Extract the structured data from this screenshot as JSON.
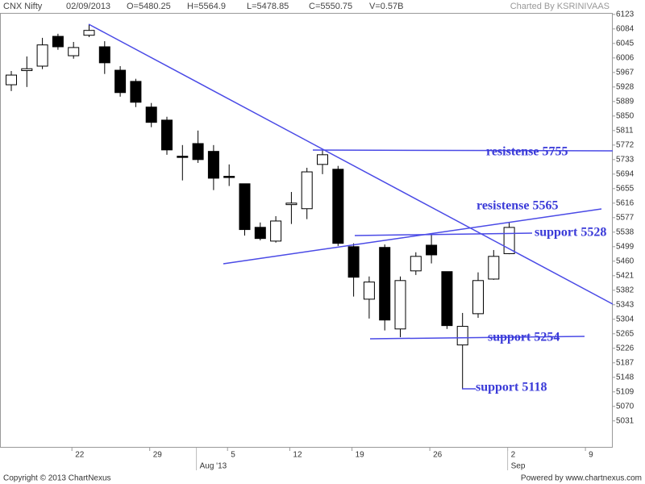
{
  "header": {
    "symbol": "CNX Nifty",
    "date": "02/09/2013",
    "open": "O=5480.25",
    "high": "H=5564.9",
    "low": "L=5478.85",
    "close": "C=5550.75",
    "volume": "V=0.57B",
    "credit": "Charted By KSRINIVAAS"
  },
  "footer": {
    "copyright": "Copyright © 2013 ChartNexus",
    "powered": "Powered by www.chartnexus.com"
  },
  "annotations": [
    "resistense 5755",
    "resistense 5565",
    "support 5528",
    "support 5254",
    "support 5118"
  ],
  "chart_data": {
    "type": "candlestick",
    "categories": [
      null,
      null,
      null,
      null,
      "22",
      null,
      null,
      null,
      null,
      "29",
      null,
      null,
      null,
      null,
      "5",
      null,
      null,
      null,
      "12",
      null,
      null,
      null,
      "19",
      null,
      null,
      null,
      null,
      "26",
      null,
      null,
      null,
      null,
      "2",
      null,
      null,
      null,
      null,
      "9",
      null
    ],
    "month_labels": [
      null,
      null,
      null,
      null,
      null,
      null,
      null,
      null,
      null,
      null,
      null,
      null,
      "Aug '13",
      null,
      null,
      null,
      null,
      null,
      null,
      null,
      null,
      null,
      null,
      null,
      null,
      null,
      null,
      null,
      null,
      null,
      null,
      null,
      "Sep",
      null,
      null,
      null,
      null,
      null,
      null
    ],
    "open": [
      5934,
      5972,
      5984,
      6064,
      6012,
      6067,
      6036,
      5973,
      5943,
      5874,
      5839,
      5742,
      5776,
      5755,
      5688,
      5668,
      5551,
      5514,
      5612,
      5601,
      5720,
      5707,
      5499,
      5358,
      5497,
      5278,
      5434,
      5503,
      5432,
      5235,
      5319,
      5412,
      5480.25,
      null,
      null,
      null,
      null,
      null,
      null
    ],
    "high": [
      5971,
      6010,
      6060,
      6071,
      6049,
      6097,
      6051,
      5984,
      5950,
      5885,
      5848,
      5772,
      5811,
      5772,
      5720,
      5668,
      5564,
      5581,
      5646,
      5711,
      5761,
      5716,
      5508,
      5419,
      5505,
      5419,
      5484,
      5532,
      5432,
      5321,
      5430,
      5490,
      5564.9,
      null,
      null,
      null,
      null,
      null,
      null
    ],
    "low": [
      5917,
      5928,
      5976,
      6028,
      6004,
      6062,
      5963,
      5902,
      5874,
      5820,
      5746,
      5677,
      5724,
      5651,
      5662,
      5529,
      5516,
      5510,
      5560,
      5573,
      5694,
      5501,
      5365,
      5306,
      5274,
      5256,
      5423,
      5454,
      5278,
      5118,
      5308,
      5410,
      5478.85,
      null,
      null,
      null,
      null,
      null,
      null
    ],
    "close": [
      5960,
      5977,
      6041,
      6036,
      6034,
      6080,
      5993,
      5913,
      5887,
      5833,
      5759,
      5739,
      5733,
      5683,
      5686,
      5545,
      5521,
      5568,
      5616,
      5700,
      5746,
      5508,
      5417,
      5404,
      5302,
      5408,
      5473,
      5477,
      5287,
      5285,
      5408,
      5473,
      5550.75,
      null,
      null,
      null,
      null,
      null,
      null
    ],
    "up_color": "#ffffff",
    "down_color": "#000000",
    "ylim": [
      4959,
      6127
    ],
    "yticks": [
      6123,
      6084,
      6045,
      6006,
      5967,
      5928,
      5889,
      5850,
      5811,
      5772,
      5733,
      5694,
      5655,
      5616,
      5577,
      5538,
      5499,
      5460,
      5421,
      5382,
      5343,
      5304,
      5265,
      5226,
      5187,
      5148,
      5109,
      5070,
      5031
    ]
  }
}
